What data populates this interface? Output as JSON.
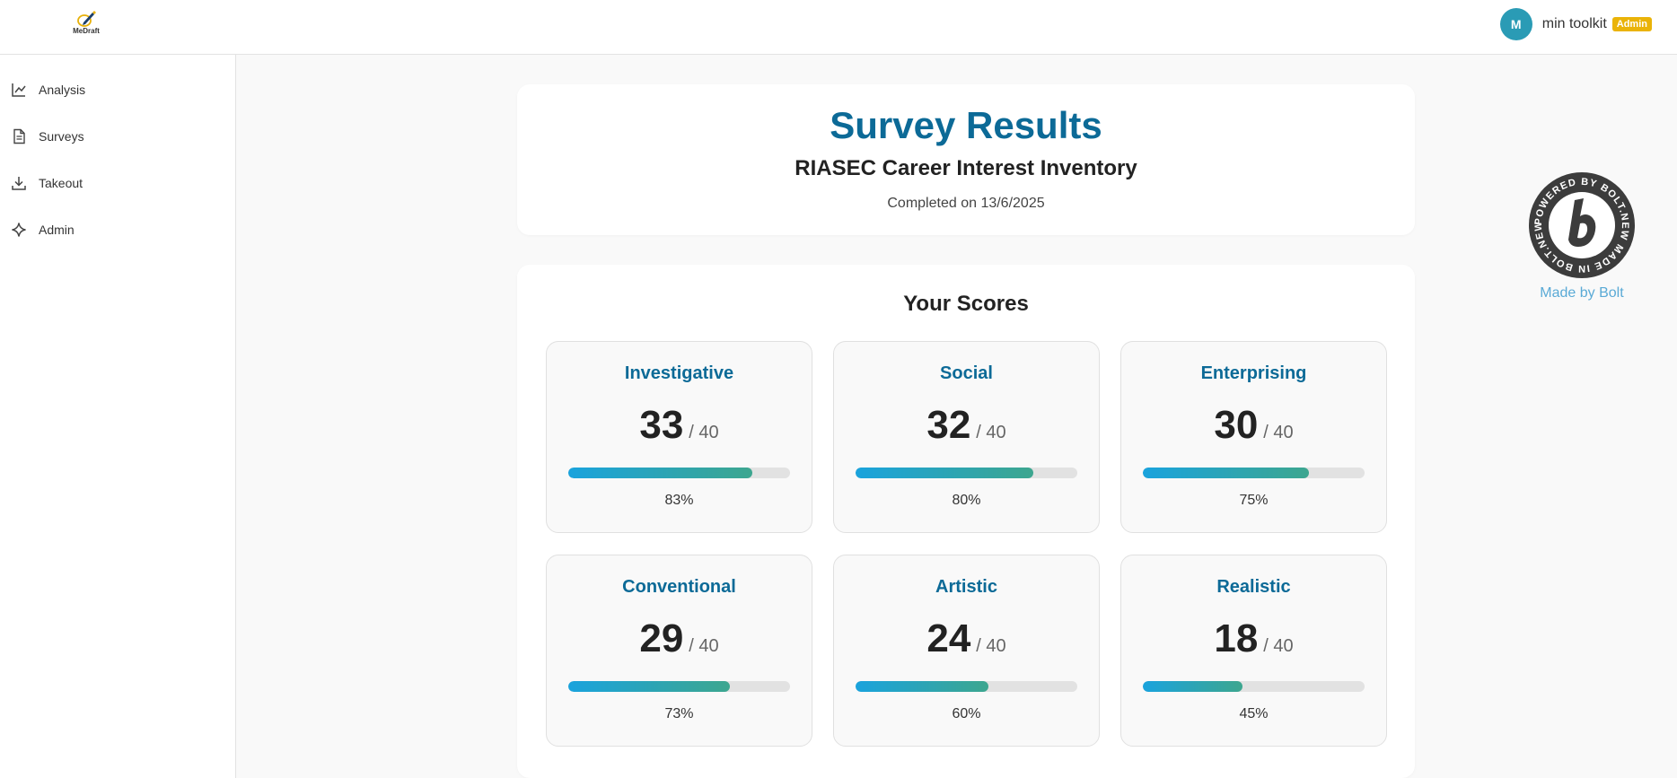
{
  "brand": {
    "logo_text": "MeDraft"
  },
  "user": {
    "initial": "M",
    "name": "min toolkit",
    "role": "Admin"
  },
  "sidebar": {
    "items": [
      {
        "label": "Analysis",
        "icon": "chart-line-icon"
      },
      {
        "label": "Surveys",
        "icon": "document-icon"
      },
      {
        "label": "Takeout",
        "icon": "download-icon"
      },
      {
        "label": "Admin",
        "icon": "sparkle-icon"
      }
    ]
  },
  "header": {
    "title": "Survey Results",
    "survey_name": "RIASEC Career Interest Inventory",
    "completed": "Completed on 13/6/2025"
  },
  "scores": {
    "title": "Your Scores",
    "items": [
      {
        "name": "Investigative",
        "score": "33",
        "max": "/ 40",
        "percent": "83%",
        "fraction": 0.83
      },
      {
        "name": "Social",
        "score": "32",
        "max": "/ 40",
        "percent": "80%",
        "fraction": 0.8
      },
      {
        "name": "Enterprising",
        "score": "30",
        "max": "/ 40",
        "percent": "75%",
        "fraction": 0.75
      },
      {
        "name": "Conventional",
        "score": "29",
        "max": "/ 40",
        "percent": "73%",
        "fraction": 0.73
      },
      {
        "name": "Artistic",
        "score": "24",
        "max": "/ 40",
        "percent": "60%",
        "fraction": 0.6
      },
      {
        "name": "Realistic",
        "score": "18",
        "max": "/ 40",
        "percent": "45%",
        "fraction": 0.45
      }
    ]
  },
  "bolt": {
    "ring_text": "POWERED BY BOLT.NEW MADE IN BOLT.NEW ",
    "caption": "Made by Bolt"
  },
  "colors": {
    "accent": "#0c6a97",
    "avatar": "#2a9bb5",
    "badge": "#eab308",
    "bar_start": "#1aa3dd",
    "bar_end": "#3da68f",
    "bolt_link": "#5aaad6"
  }
}
